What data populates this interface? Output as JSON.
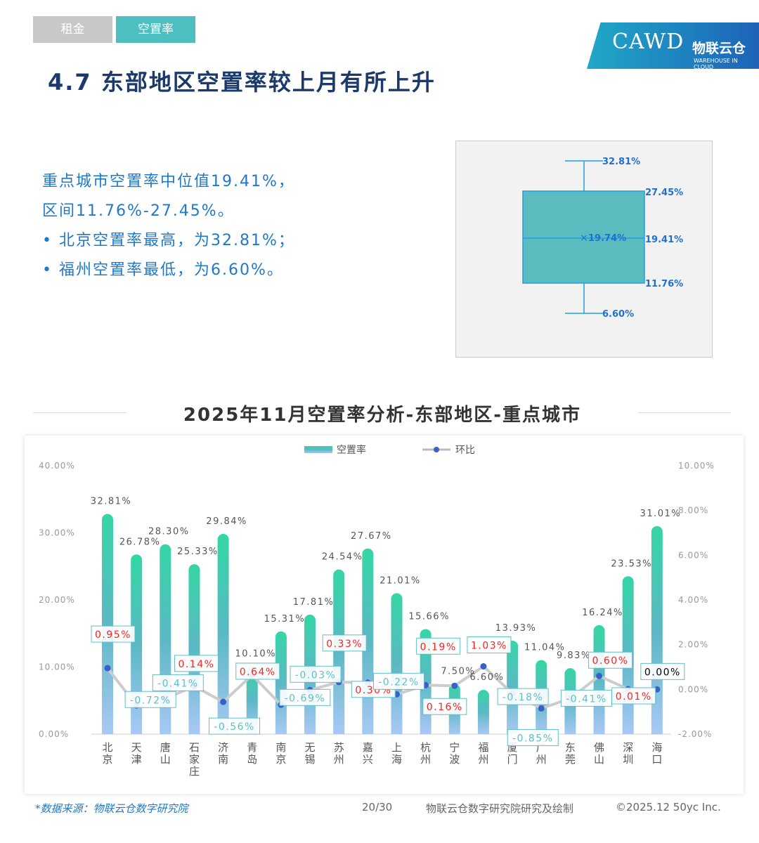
{
  "tabs": [
    {
      "label": "租金",
      "active": false
    },
    {
      "label": "空置率",
      "active": true
    }
  ],
  "logo": {
    "text": "CAWD",
    "brand": "物联云仓",
    "sub": "WAREHOUSE IN CLOUD"
  },
  "title": "4.7 东部地区空置率较上月有所上升",
  "summary": [
    "重点城市空置率中位值19.41%，",
    "区间11.76%-27.45%。",
    "•  北京空置率最高，为32.81%；",
    "•  福州空置率最低，为6.60%。"
  ],
  "boxplot": {
    "max": "32.81%",
    "q3": "27.45%",
    "median": "19.41%",
    "mean": "19.74%",
    "q1": "11.76%",
    "min": "6.60%",
    "values": {
      "max": 32.81,
      "q3": 27.45,
      "median": 19.41,
      "mean": 19.74,
      "q1": 11.76,
      "min": 6.6
    },
    "color": "#5bbcc0"
  },
  "chart_data": {
    "type": "bar+line",
    "title": "2025年11月空置率分析-东部地区-重点城市",
    "legend": [
      "空置率",
      "环比"
    ],
    "legend_position": "top",
    "categories": [
      "北京",
      "天津",
      "唐山",
      "石家庄",
      "济南",
      "青岛",
      "南京",
      "无锡",
      "苏州",
      "嘉兴",
      "上海",
      "杭州",
      "宁波",
      "福州",
      "厦门",
      "广州",
      "东莞",
      "佛山",
      "深圳",
      "海口"
    ],
    "series": [
      {
        "name": "空置率",
        "type": "bar",
        "axis": "left",
        "values": [
          32.81,
          26.78,
          28.3,
          25.33,
          29.84,
          10.1,
          15.31,
          17.81,
          24.54,
          27.67,
          21.01,
          15.66,
          7.5,
          6.6,
          13.93,
          11.04,
          9.83,
          16.24,
          23.53,
          31.01
        ],
        "labels": [
          "32.81%",
          "26.78%",
          "28.30%",
          "25.33%",
          "29.84%",
          "10.10%",
          "15.31%",
          "17.81%",
          "24.54%",
          "27.67%",
          "21.01%",
          "15.66%",
          "7.50%",
          "6.60%",
          "13.93%",
          "11.04%",
          "9.83%",
          "16.24%",
          "23.53%",
          "31.01%"
        ]
      },
      {
        "name": "环比",
        "type": "line",
        "axis": "right",
        "values": [
          0.95,
          -0.72,
          -0.41,
          0.14,
          -0.56,
          0.64,
          -0.69,
          -0.03,
          0.33,
          0.3,
          -0.22,
          0.19,
          0.16,
          1.03,
          -0.18,
          -0.85,
          -0.41,
          0.6,
          0.01,
          0.0
        ],
        "labels": [
          "0.95%",
          "-0.72%",
          "-0.41%",
          "0.14%",
          "-0.56%",
          "0.64%",
          "-0.69%",
          "-0.03%",
          "0.33%",
          "0.30%",
          "-0.22%",
          "0.19%",
          "0.16%",
          "1.03%",
          "-0.18%",
          "-0.85%",
          "-0.41%",
          "0.60%",
          "0.01%",
          "0.00%"
        ]
      }
    ],
    "left_axis": {
      "min": 0,
      "max": 40,
      "ticks": [
        "0.00%",
        "10.00%",
        "20.00%",
        "30.00%",
        "40.00%"
      ]
    },
    "right_axis": {
      "min": -2,
      "max": 10,
      "ticks": [
        "-2.00%",
        "0.00%",
        "2.00%",
        "4.00%",
        "6.00%",
        "8.00%",
        "10.00%"
      ]
    },
    "colors": {
      "bar_top": "#35d6a5",
      "bar_mid": "#5bb8c4",
      "bar_bottom": "#a9c8f5",
      "line": "#cccccc",
      "dot": "#3a5fc8",
      "positive": "#ff2020",
      "negative": "#5bc0c8",
      "zero": "#000000"
    }
  },
  "footer": {
    "source": "*数据来源：物联云仓数字研究院",
    "page": "20/30",
    "credit": "物联云仓数字研究院研究及绘制",
    "copyright": "©2025.12 50yc Inc."
  }
}
